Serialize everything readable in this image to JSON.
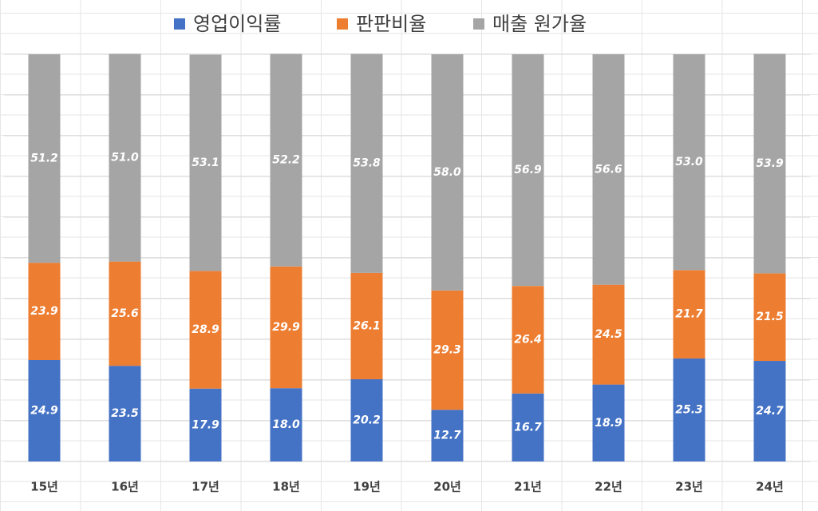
{
  "chart_data": {
    "type": "stacked_bar",
    "categories": [
      "15년",
      "16년",
      "17년",
      "18년",
      "19년",
      "20년",
      "21년",
      "22년",
      "23년",
      "24년"
    ],
    "series": [
      {
        "name": "영업이익률",
        "color": "#4472c4",
        "values": [
          24.9,
          23.5,
          17.9,
          18.0,
          20.2,
          12.7,
          16.7,
          18.9,
          25.3,
          24.7
        ],
        "value_labels": [
          "24.9",
          "23.5",
          "17.9",
          "18.0",
          "20.2",
          "12.7",
          "16.7",
          "18.9",
          "25.3",
          "24.7"
        ]
      },
      {
        "name": "판판비율",
        "color": "#ed7d31",
        "values": [
          23.9,
          25.6,
          28.9,
          29.9,
          26.1,
          29.3,
          26.4,
          24.5,
          21.7,
          21.5
        ],
        "value_labels": [
          "23.9",
          "25.6",
          "28.9",
          "29.9",
          "26.1",
          "29.3",
          "26.4",
          "24.5",
          "21.7",
          "21.5"
        ]
      },
      {
        "name": "매출 원가율",
        "color": "#a5a5a5",
        "values": [
          51.2,
          51.0,
          53.1,
          52.2,
          53.8,
          58.0,
          56.9,
          56.6,
          53.0,
          53.9
        ],
        "value_labels": [
          "51.2",
          "51.0",
          "53.1",
          "52.2",
          "53.8",
          "58.0",
          "56.9",
          "56.6",
          "53.0",
          "53.9"
        ]
      }
    ],
    "ylim": [
      0,
      100
    ],
    "yticks": [
      0,
      10,
      20,
      30,
      40,
      50,
      60,
      70,
      80,
      90,
      100
    ],
    "grid": true,
    "legend": "top"
  }
}
